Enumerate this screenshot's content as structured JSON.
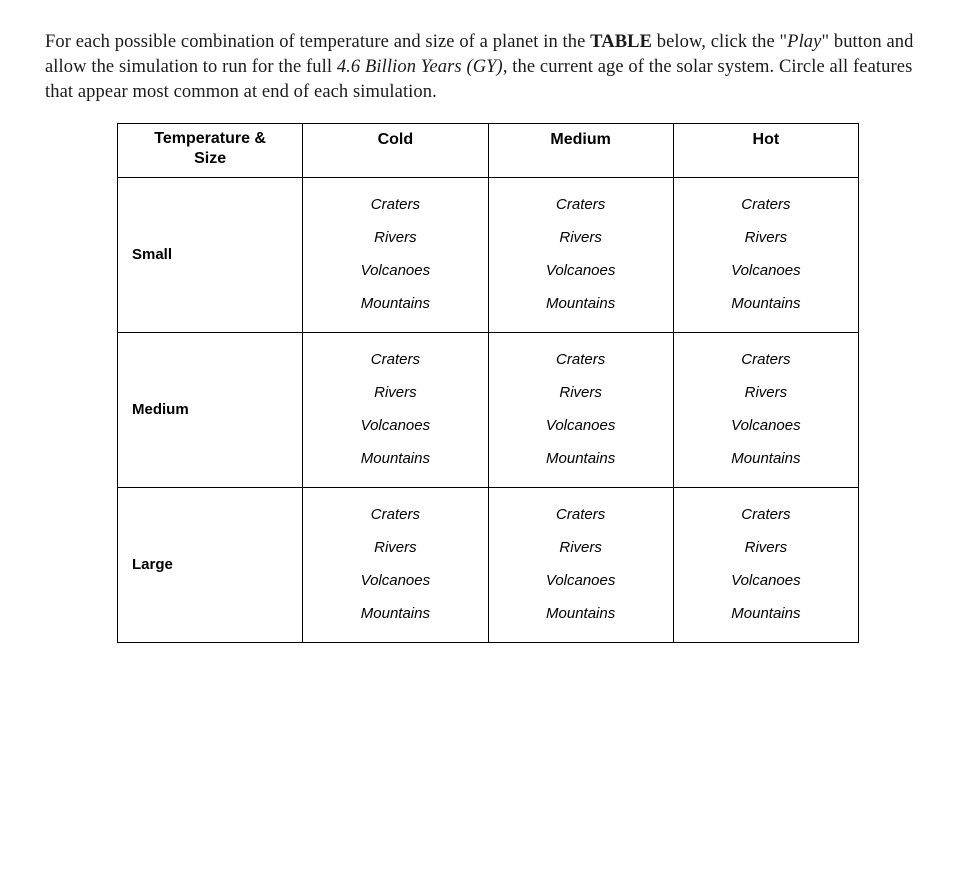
{
  "instructions": {
    "seg1": "For each possible combination of temperature and size of a planet in the ",
    "bold1": "TABLE",
    "seg2": " below, click the \"",
    "italic1": "Play",
    "seg3": "\" button and allow the simulation to run for the full ",
    "italic2": "4.6 Billion Years (GY)",
    "seg4": ", the current age of the solar system. Circle all features that appear most common at end of each simulation."
  },
  "table": {
    "corner_line1": "Temperature &",
    "corner_line2": "Size",
    "col_headers": [
      "Cold",
      "Medium",
      "Hot"
    ],
    "row_labels": [
      "Small",
      "Medium",
      "Large"
    ],
    "features": [
      "Craters",
      "Rivers",
      "Volcanoes",
      "Mountains"
    ]
  },
  "style": {
    "background_color": "#ffffff",
    "text_color": "#000000",
    "instruction_text_color": "#1a1a1a",
    "border_color": "#000000",
    "instruction_fontsize": 18.5,
    "header_fontsize": 16,
    "rowlabel_fontsize": 15,
    "feature_fontsize": 15,
    "feature_font_style": "italic",
    "header_font_family": "Verdana",
    "body_font_family": "Georgia"
  }
}
